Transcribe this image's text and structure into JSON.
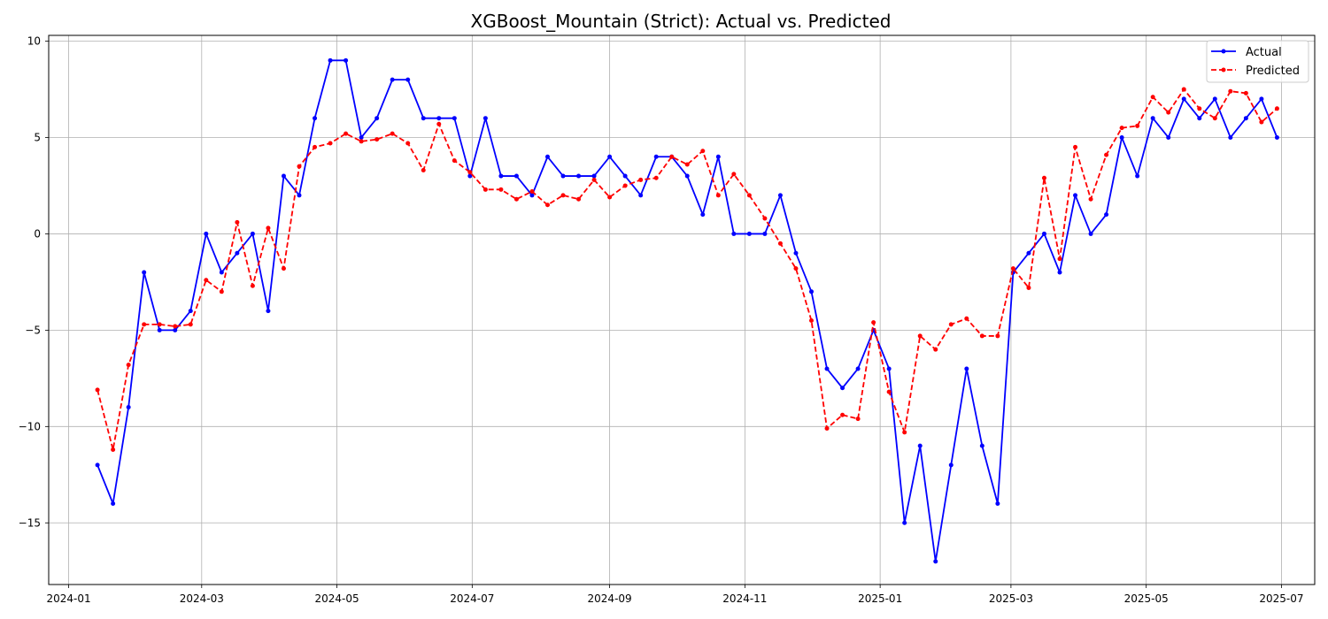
{
  "chart_data": {
    "type": "line",
    "title": "XGBoost_Mountain (Strict): Actual vs. Predicted",
    "xlabel": "",
    "ylabel": "",
    "x_ticks": [
      "2024-01-01",
      "2024-03-01",
      "2024-05-01",
      "2024-07-01",
      "2024-09-01",
      "2024-11-01",
      "2025-01-01",
      "2025-03-01",
      "2025-05-01",
      "2025-07-01"
    ],
    "x_tick_labels": [
      "2024-01",
      "2024-03",
      "2024-05",
      "2024-07",
      "2024-09",
      "2024-11",
      "2025-01",
      "2025-03",
      "2025-05",
      "2025-07"
    ],
    "y_ticks": [
      10,
      5,
      0,
      -5,
      -10,
      -15
    ],
    "y_tick_labels": [
      "10",
      "5",
      "0",
      "−5",
      "−10",
      "−15"
    ],
    "xlim": [
      "2023-12-23",
      "2025-07-16"
    ],
    "ylim": [
      -18.2,
      10.3
    ],
    "grid": true,
    "legend_position": "top-right",
    "x": [
      "2024-01-14",
      "2024-01-21",
      "2024-01-28",
      "2024-02-04",
      "2024-02-11",
      "2024-02-18",
      "2024-02-25",
      "2024-03-03",
      "2024-03-10",
      "2024-03-17",
      "2024-03-24",
      "2024-03-31",
      "2024-04-07",
      "2024-04-14",
      "2024-04-21",
      "2024-04-28",
      "2024-05-05",
      "2024-05-12",
      "2024-05-19",
      "2024-05-26",
      "2024-06-02",
      "2024-06-09",
      "2024-06-16",
      "2024-06-23",
      "2024-06-30",
      "2024-07-07",
      "2024-07-14",
      "2024-07-21",
      "2024-07-28",
      "2024-08-04",
      "2024-08-11",
      "2024-08-18",
      "2024-08-25",
      "2024-09-01",
      "2024-09-08",
      "2024-09-15",
      "2024-09-22",
      "2024-09-29",
      "2024-10-06",
      "2024-10-13",
      "2024-10-20",
      "2024-10-27",
      "2024-11-03",
      "2024-11-10",
      "2024-11-17",
      "2024-11-24",
      "2024-12-01",
      "2024-12-08",
      "2024-12-15",
      "2024-12-22",
      "2024-12-29",
      "2025-01-05",
      "2025-01-12",
      "2025-01-19",
      "2025-01-26",
      "2025-02-02",
      "2025-02-09",
      "2025-02-16",
      "2025-02-23",
      "2025-03-02",
      "2025-03-09",
      "2025-03-16",
      "2025-03-23",
      "2025-03-30",
      "2025-04-06",
      "2025-04-13",
      "2025-04-20",
      "2025-04-27",
      "2025-05-04",
      "2025-05-11",
      "2025-05-18",
      "2025-05-25",
      "2025-06-01",
      "2025-06-08",
      "2025-06-15",
      "2025-06-22",
      "2025-06-29"
    ],
    "series": [
      {
        "name": "Actual",
        "color": "#0000ff",
        "linestyle": "solid",
        "values": [
          -12,
          -14,
          -9,
          -2,
          -5,
          -5,
          -4,
          0,
          -2,
          -1,
          0,
          -4,
          3,
          2,
          6,
          9,
          9,
          5,
          6,
          8,
          8,
          6,
          6,
          6,
          3,
          6,
          3,
          3,
          2,
          4,
          3,
          3,
          3,
          4,
          3,
          2,
          4,
          4,
          3,
          1,
          4,
          0,
          0,
          0,
          2,
          -1,
          -3,
          -7,
          -8,
          -7,
          -5,
          -7,
          -15,
          -11,
          -17,
          -12,
          -7,
          -11,
          -14,
          -2,
          -1,
          0,
          -2,
          2,
          0,
          1,
          5,
          3,
          6,
          5,
          7,
          6,
          7,
          5,
          6,
          7,
          5
        ]
      },
      {
        "name": "Predicted",
        "color": "#ff0000",
        "linestyle": "dashed",
        "values": [
          -8.1,
          -11.2,
          -6.8,
          -4.7,
          -4.7,
          -4.8,
          -4.7,
          -2.4,
          -3.0,
          0.6,
          -2.7,
          0.3,
          -1.8,
          3.5,
          4.5,
          4.7,
          5.2,
          4.8,
          4.9,
          5.2,
          4.7,
          3.3,
          5.7,
          3.8,
          3.2,
          2.3,
          2.3,
          1.8,
          2.2,
          1.5,
          2.0,
          1.8,
          2.8,
          1.9,
          2.5,
          2.8,
          2.9,
          4.0,
          3.6,
          4.3,
          2.0,
          3.1,
          2.0,
          0.8,
          -0.5,
          -1.8,
          -4.5,
          -10.1,
          -9.4,
          -9.6,
          -4.6,
          -8.2,
          -10.3,
          -5.3,
          -6.0,
          -4.7,
          -4.4,
          -5.3,
          -5.3,
          -1.8,
          -2.8,
          2.9,
          -1.3,
          4.5,
          1.8,
          4.1,
          5.5,
          5.6,
          7.1,
          6.3,
          7.5,
          6.5,
          6.0,
          7.4,
          7.3,
          5.8,
          6.5
        ]
      }
    ]
  }
}
